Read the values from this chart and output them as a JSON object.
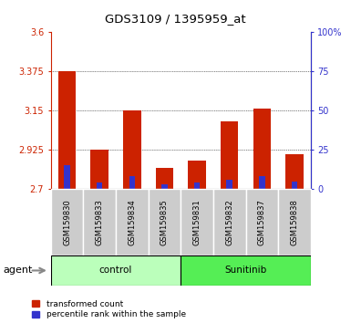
{
  "title": "GDS3109 / 1395959_at",
  "samples": [
    "GSM159830",
    "GSM159833",
    "GSM159834",
    "GSM159835",
    "GSM159831",
    "GSM159832",
    "GSM159837",
    "GSM159838"
  ],
  "transformed_count": [
    3.375,
    2.925,
    3.15,
    2.82,
    2.865,
    3.09,
    3.16,
    2.9
  ],
  "percentile_rank": [
    15,
    4,
    8,
    3,
    4,
    6,
    8,
    5
  ],
  "bar_bottom": 2.7,
  "ylim_left": [
    2.7,
    3.6
  ],
  "ylim_right": [
    0,
    100
  ],
  "yticks_left": [
    2.7,
    2.925,
    3.15,
    3.375,
    3.6
  ],
  "yticks_right": [
    0,
    25,
    50,
    75,
    100
  ],
  "ytick_labels_left": [
    "2.7",
    "2.925",
    "3.15",
    "3.375",
    "3.6"
  ],
  "ytick_labels_right": [
    "0",
    "25",
    "50",
    "75",
    "100%"
  ],
  "gridlines": [
    3.375,
    3.15,
    2.925
  ],
  "control_label": "control",
  "sunitinib_label": "Sunitinib",
  "agent_label": "agent",
  "red_color": "#cc2200",
  "blue_color": "#3333cc",
  "control_bg": "#bbffbb",
  "sunitinib_bg": "#55ee55",
  "sample_bg": "#cccccc",
  "legend_red": "transformed count",
  "legend_blue": "percentile rank within the sample",
  "bar_width": 0.55,
  "blue_bar_width": 0.18
}
